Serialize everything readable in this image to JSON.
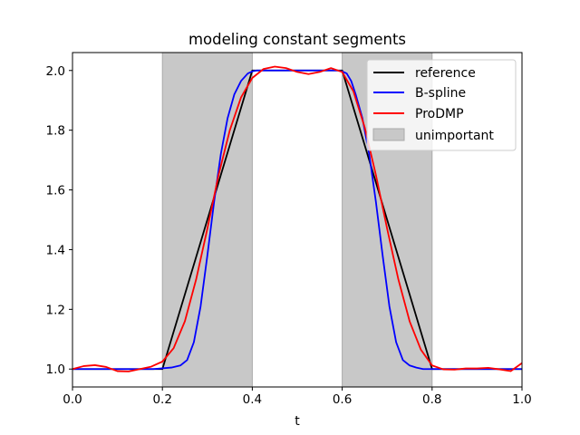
{
  "chart_data": {
    "type": "line",
    "title": "modeling constant segments",
    "xlabel": "t",
    "ylabel": "",
    "xlim": [
      0.0,
      1.0
    ],
    "ylim": [
      0.94,
      2.06
    ],
    "grid": false,
    "legend_position": "top-right",
    "xticks": [
      0.0,
      0.2,
      0.4,
      0.6,
      0.8,
      1.0
    ],
    "xtick_labels": [
      "0.0",
      "0.2",
      "0.4",
      "0.6",
      "0.8",
      "1.0"
    ],
    "yticks": [
      1.0,
      1.2,
      1.4,
      1.6,
      1.8,
      2.0
    ],
    "ytick_labels": [
      "1.0",
      "1.2",
      "1.4",
      "1.6",
      "1.8",
      "2.0"
    ],
    "shaded_regions": [
      {
        "name": "unimportant",
        "x_start": 0.2,
        "x_end": 0.4,
        "color": "#c8c8c8"
      },
      {
        "name": "unimportant",
        "x_start": 0.6,
        "x_end": 0.8,
        "color": "#c8c8c8"
      }
    ],
    "series": [
      {
        "name": "reference",
        "color": "#000000",
        "x": [
          0.0,
          0.2,
          0.4,
          0.6,
          0.8,
          1.0
        ],
        "y": [
          1.0,
          1.0,
          2.0,
          2.0,
          1.0,
          1.0
        ]
      },
      {
        "name": "B-spline",
        "color": "#0000ff",
        "x": [
          0.0,
          0.18,
          0.22,
          0.24,
          0.255,
          0.27,
          0.285,
          0.3,
          0.315,
          0.33,
          0.345,
          0.36,
          0.375,
          0.39,
          0.4,
          0.41,
          0.42,
          0.43,
          0.45,
          0.5,
          0.55,
          0.58,
          0.59,
          0.6,
          0.61,
          0.62,
          0.63,
          0.645,
          0.66,
          0.675,
          0.69,
          0.705,
          0.72,
          0.735,
          0.75,
          0.765,
          0.78,
          0.82,
          1.0
        ],
        "y": [
          1.0,
          1.0,
          1.005,
          1.012,
          1.03,
          1.09,
          1.21,
          1.38,
          1.56,
          1.72,
          1.84,
          1.92,
          1.965,
          1.99,
          1.997,
          2.0,
          2.0,
          2.0,
          2.0,
          2.0,
          2.0,
          2.0,
          2.0,
          1.997,
          1.99,
          1.965,
          1.92,
          1.84,
          1.72,
          1.56,
          1.38,
          1.21,
          1.09,
          1.03,
          1.012,
          1.005,
          1.0,
          1.0,
          1.0
        ]
      },
      {
        "name": "ProDMP",
        "color": "#ff0000",
        "x": [
          0.0,
          0.025,
          0.05,
          0.075,
          0.1,
          0.125,
          0.15,
          0.175,
          0.2,
          0.225,
          0.25,
          0.275,
          0.3,
          0.325,
          0.35,
          0.375,
          0.4,
          0.425,
          0.45,
          0.475,
          0.5,
          0.525,
          0.55,
          0.575,
          0.6,
          0.625,
          0.65,
          0.675,
          0.7,
          0.725,
          0.75,
          0.775,
          0.8,
          0.825,
          0.85,
          0.875,
          0.9,
          0.925,
          0.95,
          0.975,
          1.0
        ],
        "y": [
          1.0,
          1.01,
          1.013,
          1.007,
          0.993,
          0.992,
          1.0,
          1.008,
          1.025,
          1.07,
          1.16,
          1.3,
          1.47,
          1.65,
          1.8,
          1.91,
          1.975,
          2.005,
          2.013,
          2.008,
          1.995,
          1.988,
          1.995,
          2.008,
          1.995,
          1.93,
          1.81,
          1.65,
          1.47,
          1.3,
          1.16,
          1.065,
          1.012,
          0.999,
          0.998,
          1.002,
          1.002,
          1.004,
          0.999,
          0.993,
          1.02
        ]
      }
    ]
  }
}
